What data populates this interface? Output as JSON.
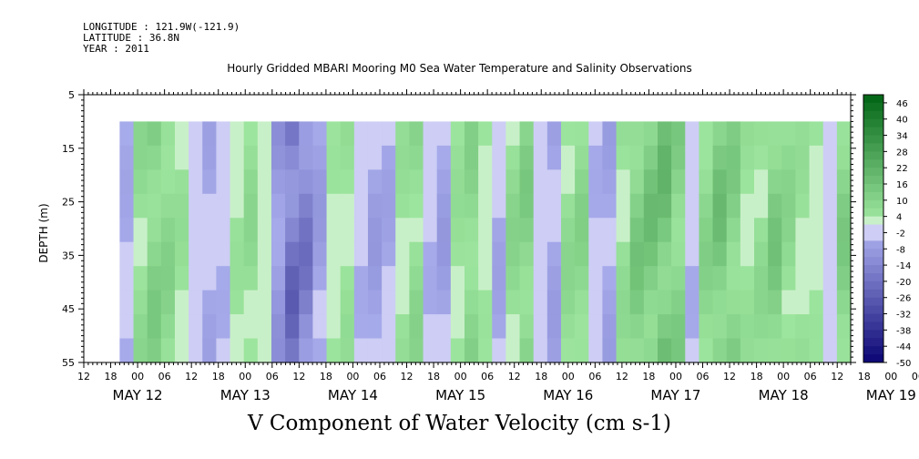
{
  "header": {
    "longitude": "LONGITUDE : 121.9W(-121.9)",
    "latitude": "LATITUDE : 36.8N",
    "year": "YEAR : 2011"
  },
  "chart_data": {
    "type": "heatmap",
    "title": "Hourly Gridded MBARI Mooring M0 Sea Water Temperature and Salinity Observations",
    "xlabel": "V Component of Water Velocity (cm s-1)",
    "ylabel": "DEPTH (m)",
    "ylim": [
      55,
      5
    ],
    "y_ticks": [
      "5",
      "15",
      "25",
      "35",
      "45",
      "55"
    ],
    "x_hour_ticks": [
      "12",
      "18",
      "00",
      "06",
      "12",
      "18",
      "00",
      "06",
      "12",
      "18",
      "00",
      "06",
      "12",
      "18",
      "00",
      "06",
      "12",
      "18",
      "00",
      "06",
      "12",
      "18",
      "00",
      "06",
      "12",
      "18",
      "00",
      "06",
      "12",
      "18",
      "00",
      "06",
      "12"
    ],
    "x_day_labels": [
      "MAY 12",
      "MAY 13",
      "MAY 14",
      "MAY 15",
      "MAY 16",
      "MAY 17",
      "MAY 18",
      "MAY 19"
    ],
    "x_range_hours": {
      "start_day": "MAY 12",
      "start_hour": 12,
      "end_day": "MAY 19",
      "end_hour": 15
    },
    "data_start_hour": {
      "day": "MAY 12",
      "hour": 20
    },
    "depth_range_data": [
      10,
      55
    ],
    "colorbar": {
      "labels": [
        "46",
        "40",
        "34",
        "28",
        "22",
        "16",
        "10",
        "4",
        "-2",
        "-8",
        "-14",
        "-20",
        "-26",
        "-32",
        "-38",
        "-44",
        "-50"
      ],
      "min": -50,
      "max": 49,
      "step": 3
    },
    "values_v": [
      -5,
      8,
      12,
      10,
      6,
      -3,
      -6,
      -4,
      5,
      8,
      3,
      -10,
      -22,
      -18,
      -8,
      4,
      6,
      -4,
      -8,
      -6,
      6,
      9,
      -4,
      -8,
      6,
      10,
      4,
      -6,
      9,
      12,
      -3,
      -7,
      8,
      10,
      -4,
      -7,
      7,
      14,
      16,
      18,
      12,
      -4,
      10,
      16,
      12,
      6,
      8,
      14,
      9,
      6,
      4,
      -3,
      12
    ],
    "values_note": "V velocity (cm s-1) per time column, approximate"
  }
}
